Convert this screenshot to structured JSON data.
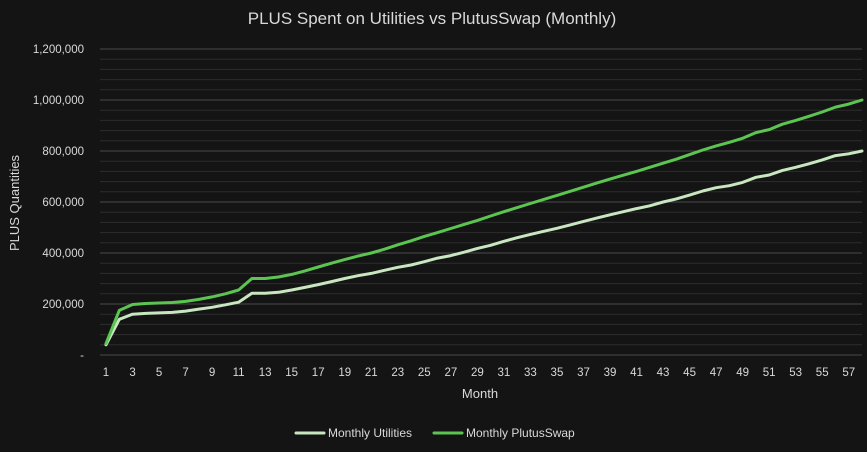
{
  "chart_data": {
    "type": "line",
    "title": "PLUS Spent on Utilities vs PlutusSwap (Monthly)",
    "xlabel": "Month",
    "ylabel": "PLUS Quantities",
    "ylim": [
      0,
      1200000
    ],
    "y_ticks": [
      0,
      200000,
      400000,
      600000,
      800000,
      1000000,
      1200000
    ],
    "y_tick_labels": [
      "-",
      "200,000",
      "400,000",
      "600,000",
      "800,000",
      "1,000,000",
      "1,200,000"
    ],
    "x_tick_labels": [
      "1",
      "3",
      "5",
      "7",
      "9",
      "11",
      "13",
      "15",
      "17",
      "19",
      "21",
      "23",
      "25",
      "27",
      "29",
      "31",
      "33",
      "35",
      "37",
      "39",
      "41",
      "43",
      "45",
      "47",
      "49",
      "51",
      "53",
      "55",
      "57"
    ],
    "grid": {
      "major": true,
      "minor": true
    },
    "legend_position": "bottom",
    "x": [
      1,
      2,
      3,
      4,
      5,
      6,
      7,
      8,
      9,
      10,
      11,
      12,
      13,
      14,
      15,
      16,
      17,
      18,
      19,
      20,
      21,
      22,
      23,
      24,
      25,
      26,
      27,
      28,
      29,
      30,
      31,
      32,
      33,
      34,
      35,
      36,
      37,
      38,
      39,
      40,
      41,
      42,
      43,
      44,
      45,
      46,
      47,
      48,
      49,
      50,
      51,
      52,
      53,
      54,
      55,
      56,
      57,
      58
    ],
    "series": [
      {
        "name": "Monthly Utilities",
        "color": "#c8e6c0",
        "values": [
          40000,
          140000,
          160000,
          163000,
          165000,
          167000,
          172000,
          180000,
          187000,
          197000,
          207000,
          242000,
          242000,
          246000,
          255000,
          265000,
          276000,
          288000,
          300000,
          311000,
          320000,
          332000,
          344000,
          353000,
          366000,
          380000,
          390000,
          403000,
          418000,
          430000,
          446000,
          460000,
          473000,
          485000,
          497000,
          510000,
          524000,
          537000,
          550000,
          562000,
          574000,
          585000,
          600000,
          612000,
          627000,
          643000,
          656000,
          664000,
          677000,
          697000,
          706000,
          724000,
          736000,
          750000,
          765000,
          782000,
          789000,
          800000
        ]
      },
      {
        "name": "Monthly PlutusSwap",
        "color": "#5cc451",
        "values": [
          45000,
          175000,
          198000,
          202000,
          204000,
          206000,
          210000,
          218000,
          228000,
          240000,
          255000,
          300000,
          300000,
          306000,
          316000,
          330000,
          345000,
          360000,
          374000,
          388000,
          400000,
          415000,
          432000,
          448000,
          465000,
          480000,
          496000,
          512000,
          528000,
          545000,
          562000,
          578000,
          594000,
          610000,
          626000,
          642000,
          658000,
          674000,
          690000,
          705000,
          720000,
          736000,
          752000,
          768000,
          786000,
          804000,
          820000,
          834000,
          850000,
          872000,
          884000,
          905000,
          920000,
          936000,
          953000,
          972000,
          984000,
          1000000
        ]
      }
    ]
  }
}
